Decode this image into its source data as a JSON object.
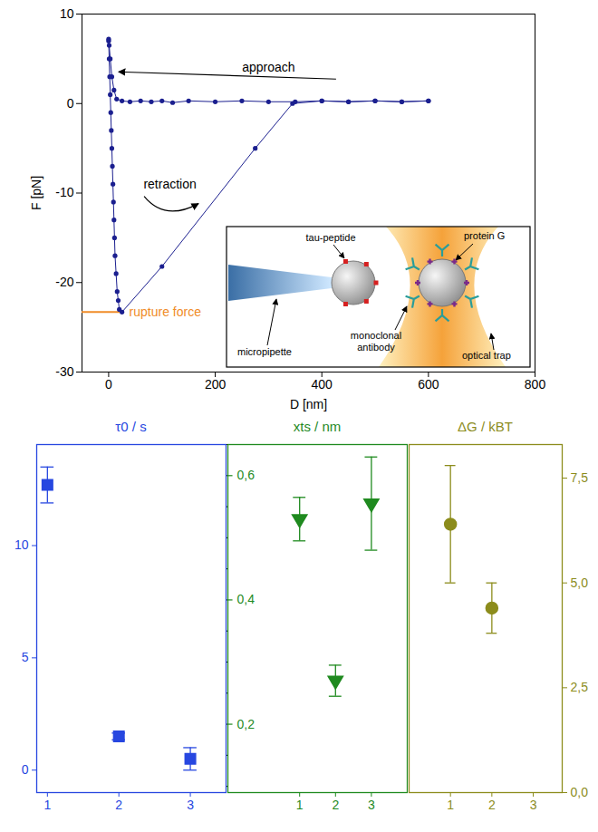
{
  "chart_data": [
    {
      "type": "line",
      "marker": "circle",
      "color": "#1b1f8f",
      "xlabel": "D [nm]",
      "ylabel": "F [pN]",
      "x": [
        600,
        550,
        500,
        450,
        400,
        350,
        300,
        250,
        200,
        150,
        120,
        100,
        80,
        60,
        40,
        25,
        15,
        10,
        6,
        3,
        1,
        0,
        0,
        1,
        2,
        3,
        4,
        5,
        6,
        7,
        8,
        9,
        10,
        11,
        12,
        14,
        16,
        18,
        20,
        25,
        100,
        275,
        345,
        400,
        450,
        500,
        550,
        600
      ],
      "values": [
        0.3,
        0.2,
        0.3,
        0.2,
        0.3,
        0.2,
        0.2,
        0.3,
        0.2,
        0.3,
        0.1,
        0.3,
        0.2,
        0.3,
        0.2,
        0.3,
        0.5,
        1.5,
        3,
        5,
        6.5,
        7.2,
        7,
        5,
        3,
        1,
        -1,
        -3,
        -5,
        -7,
        -9,
        -11,
        -13,
        -15,
        -17,
        -19,
        -21,
        -22,
        -23,
        -23.3,
        -18.2,
        -5,
        0,
        0.3,
        0.2,
        0.3,
        0.2,
        0.3
      ],
      "xlim": [
        -50,
        800
      ],
      "xticks": [
        0,
        200,
        400,
        600,
        800
      ],
      "ylim": [
        -30,
        10
      ],
      "yticks": [
        -30,
        -20,
        -10,
        0,
        10
      ],
      "annotations": [
        {
          "text": "approach",
          "x": 300,
          "y": 4
        },
        {
          "text": "retraction",
          "x": 115,
          "y": -9
        },
        {
          "text": "rupture force",
          "x": 25,
          "y": -23.3,
          "color": "#f08c28"
        }
      ]
    },
    {
      "type": "scatter",
      "title": "τ0 / s",
      "color": "#2747e0",
      "marker": "square",
      "x": [
        1,
        2,
        3
      ],
      "values": [
        12.7,
        1.5,
        0.5
      ],
      "errors": [
        0.8,
        0.15,
        0.5
      ],
      "xlim": [
        0.85,
        3.5
      ],
      "xticks": [
        1,
        2,
        3
      ],
      "ylim": [
        -1,
        14.5
      ],
      "yticks": [
        0,
        5,
        10
      ]
    },
    {
      "type": "scatter",
      "title": "xts / nm",
      "color": "#1f8a1f",
      "marker": "triangle-down",
      "x": [
        1,
        2,
        3
      ],
      "values": [
        0.53,
        0.27,
        0.555
      ],
      "errors": [
        0.035,
        0.025,
        0.075
      ],
      "xlim": [
        -1,
        4
      ],
      "xticks": [
        1,
        2,
        3
      ],
      "ylim": [
        0.09,
        0.65
      ],
      "yticks": [
        {
          "value": 0.2,
          "label": "0,2"
        },
        {
          "value": 0.4,
          "label": "0,4"
        },
        {
          "value": 0.6,
          "label": "0,6"
        }
      ]
    },
    {
      "type": "scatter",
      "title": "ΔG / kBT",
      "color": "#8c8c1c",
      "marker": "circle",
      "x": [
        1,
        2,
        3
      ],
      "values": [
        6.4,
        4.4,
        null
      ],
      "errors": [
        1.4,
        0.6,
        null
      ],
      "xlim": [
        0,
        3.7
      ],
      "xticks": [
        1,
        2,
        3
      ],
      "ylim": [
        0,
        8.3
      ],
      "yticks": [
        {
          "value": 0,
          "label": "0,0"
        },
        {
          "value": 2.5,
          "label": "2,5"
        },
        {
          "value": 5,
          "label": "5,0"
        },
        {
          "value": 7.5,
          "label": "7,5"
        }
      ]
    }
  ],
  "inset": {
    "labels": {
      "tau_peptide": "tau-peptide",
      "protein_g": "protein G",
      "micropipette": "micropipette",
      "antibody": "monoclonal antibody",
      "optical_trap": "optical trap"
    }
  }
}
